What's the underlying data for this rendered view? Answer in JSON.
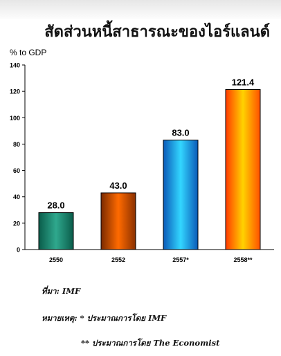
{
  "chart_data": {
    "type": "bar",
    "title": "สัดส่วนหนี้สาธารณะของไอร์แลนด์",
    "ylabel": "% to GDP",
    "xlabel": "",
    "categories": [
      "2550",
      "2552",
      "2557*",
      "2558**"
    ],
    "values": [
      28.0,
      43.0,
      83.0,
      121.4
    ],
    "value_labels": [
      "28.0",
      "43.0",
      "83.0",
      "121.4"
    ],
    "ylim": [
      0,
      140
    ],
    "yticks": [
      0,
      20,
      40,
      60,
      80,
      100,
      120,
      140
    ],
    "grid": false,
    "legend": "none",
    "bar_colors": [
      [
        "#0a5c4a",
        "#2fa88d",
        "#0a5c4a"
      ],
      [
        "#7a2a00",
        "#ff6a00",
        "#8a3000"
      ],
      [
        "#0a5ab8",
        "#33d6ff",
        "#0a5ab8"
      ],
      [
        "#ff3a00",
        "#ffd200",
        "#ff5000"
      ]
    ]
  },
  "notes": {
    "source": "ที่มา: IMF",
    "remark": "หมายเหตุ: * ประมาณการโดย IMF",
    "remark2": "** ประมาณการโดย The Economist"
  }
}
